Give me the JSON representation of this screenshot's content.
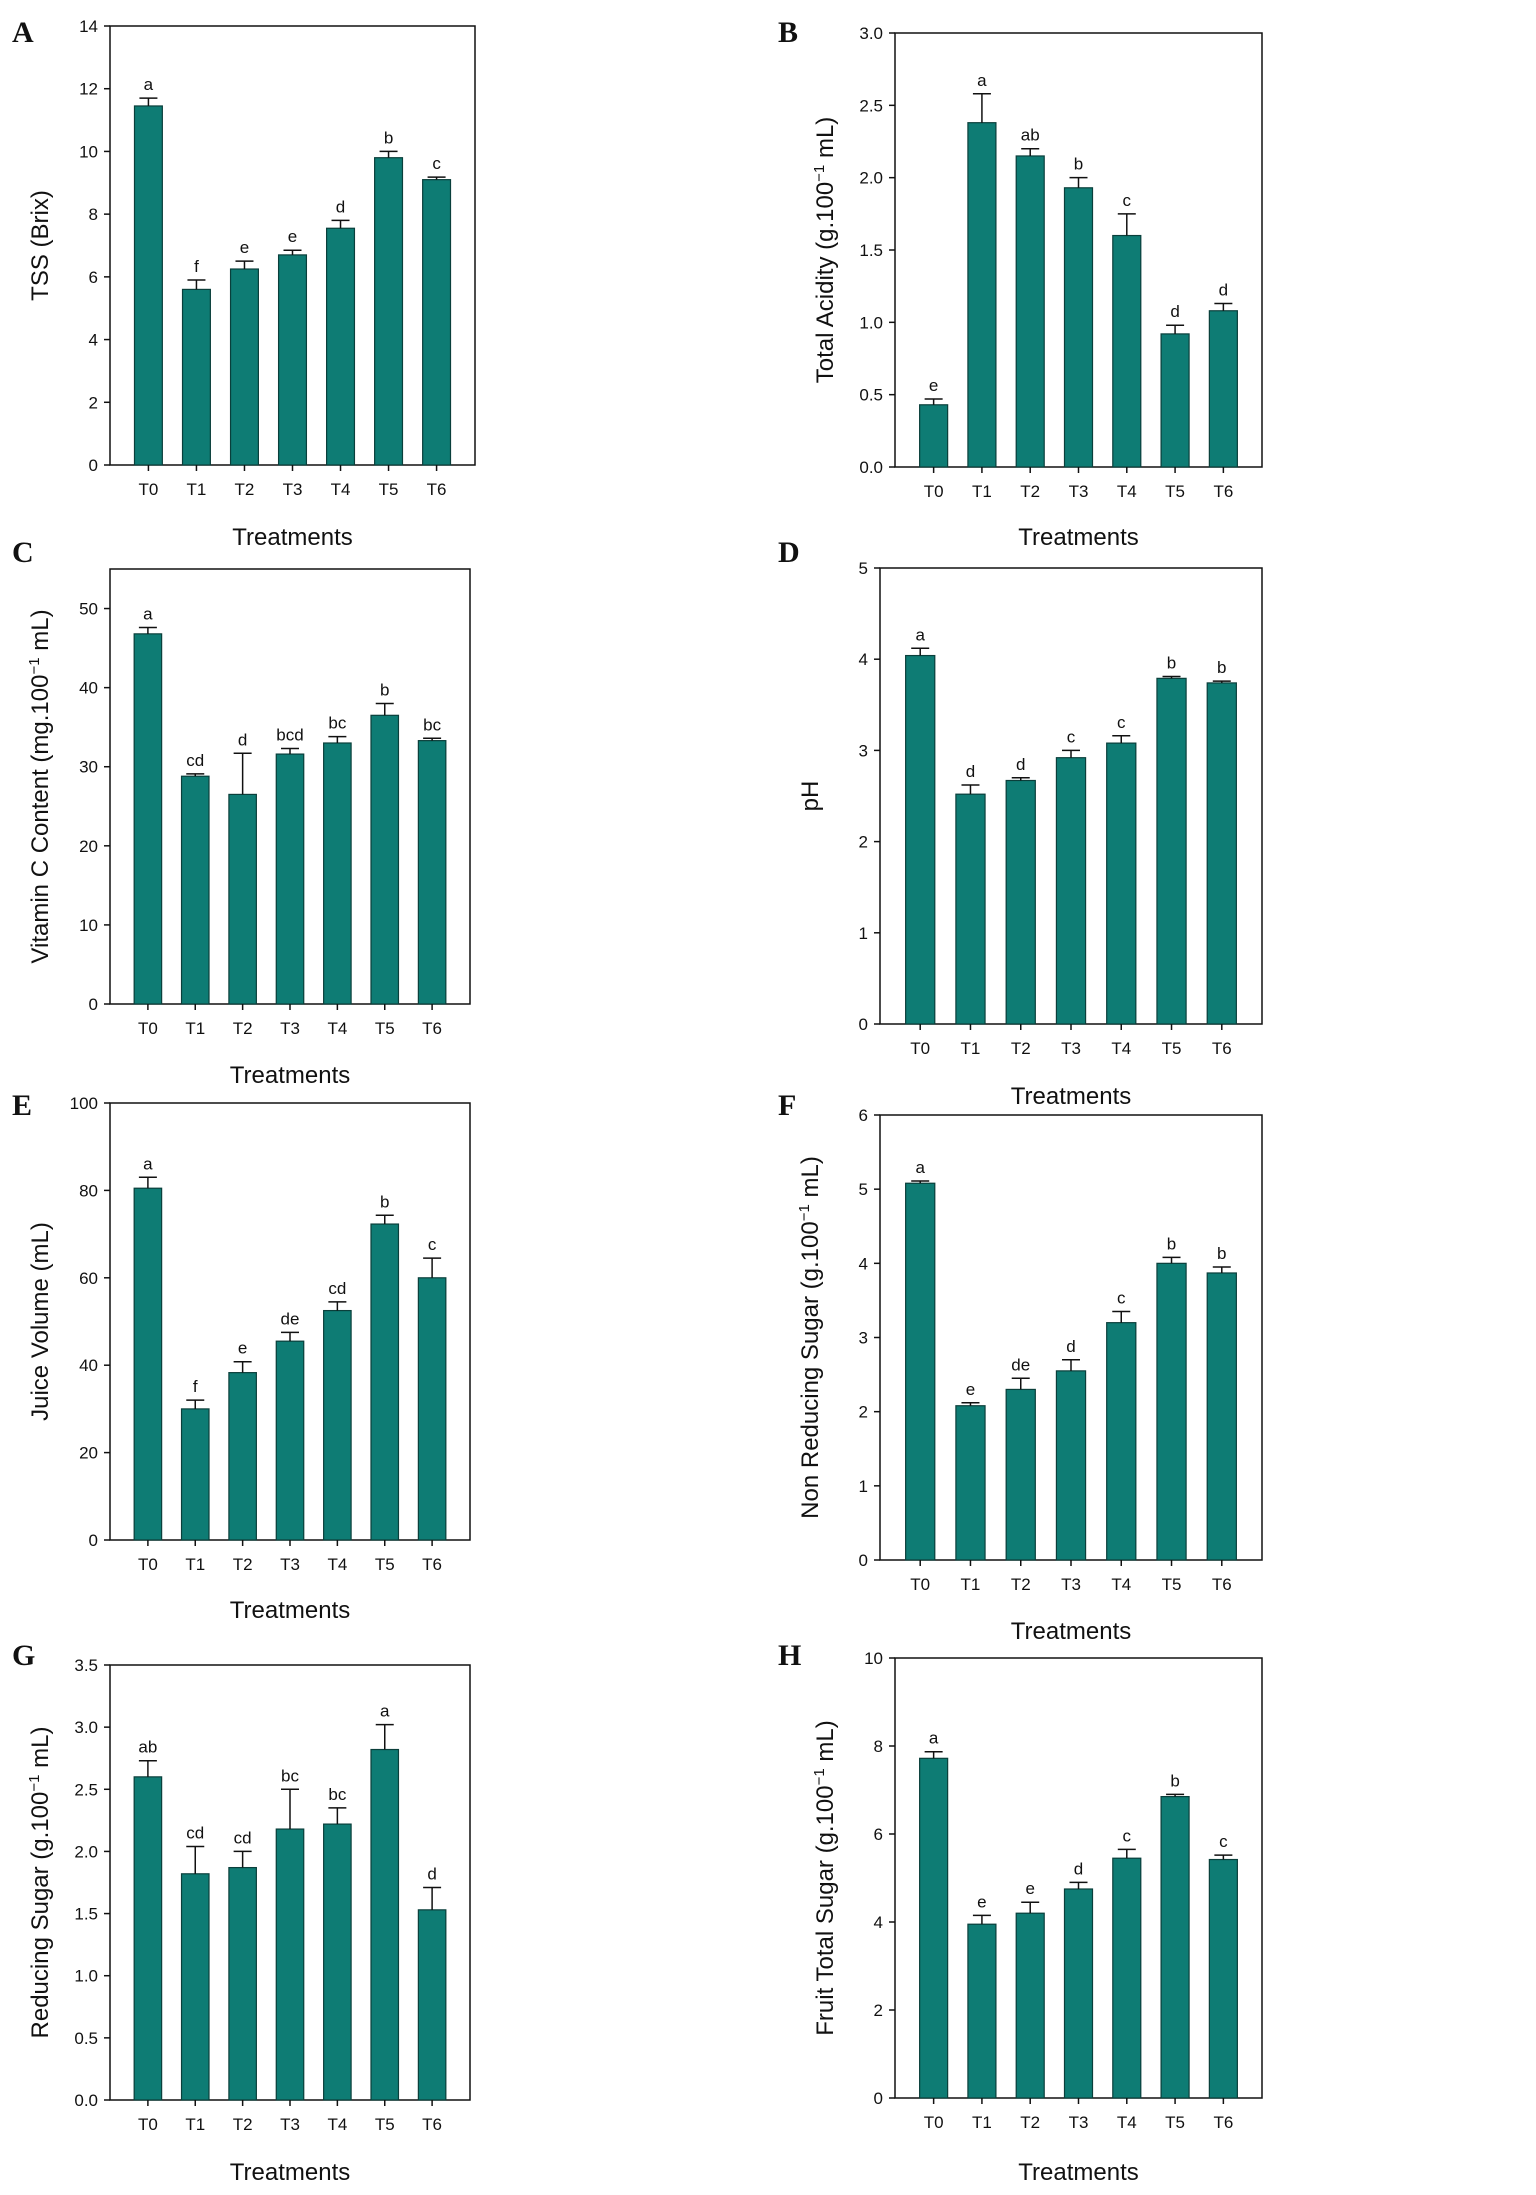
{
  "colors": {
    "bar": "#0e7c74",
    "bar_edge": "#0a3f3b",
    "axis": "#111111"
  },
  "chart_data": [
    {
      "panel": "A",
      "type": "bar",
      "categories": [
        "T0",
        "T1",
        "T2",
        "T3",
        "T4",
        "T5",
        "T6"
      ],
      "values": [
        11.45,
        5.6,
        6.25,
        6.7,
        7.55,
        9.8,
        9.1
      ],
      "errors": [
        0.25,
        0.3,
        0.25,
        0.15,
        0.25,
        0.2,
        0.08
      ],
      "letters": [
        "a",
        "f",
        "e",
        "e",
        "d",
        "b",
        "c"
      ],
      "ylabel": "TSS (Brix)",
      "ylabel_sup": "",
      "ylabel_tail": "",
      "xlabel": "Treatments",
      "ylim": [
        0,
        14
      ],
      "yticks": [
        0,
        2,
        4,
        6,
        8,
        10,
        12,
        14
      ]
    },
    {
      "panel": "B",
      "type": "bar",
      "categories": [
        "T0",
        "T1",
        "T2",
        "T3",
        "T4",
        "T5",
        "T6"
      ],
      "values": [
        0.43,
        2.38,
        2.15,
        1.93,
        1.6,
        0.92,
        1.08
      ],
      "errors": [
        0.04,
        0.2,
        0.05,
        0.07,
        0.15,
        0.06,
        0.05
      ],
      "letters": [
        "e",
        "a",
        "ab",
        "b",
        "c",
        "d",
        "d"
      ],
      "ylabel": "Total Acidity (g.100",
      "ylabel_sup": "−1",
      "ylabel_tail": " mL)",
      "xlabel": "Treatments",
      "ylim": [
        0,
        3.0
      ],
      "yticks": [
        "0.0",
        "0.5",
        "1.0",
        "1.5",
        "2.0",
        "2.5",
        "3.0"
      ]
    },
    {
      "panel": "C",
      "type": "bar",
      "categories": [
        "T0",
        "T1",
        "T2",
        "T3",
        "T4",
        "T5",
        "T6"
      ],
      "values": [
        46.8,
        28.8,
        26.5,
        31.6,
        33.0,
        36.5,
        33.3
      ],
      "errors": [
        0.8,
        0.3,
        5.2,
        0.7,
        0.8,
        1.5,
        0.3
      ],
      "letters": [
        "a",
        "cd",
        "d",
        "bcd",
        "bc",
        "b",
        "bc"
      ],
      "ylabel": "Vitamin C Content (mg.100",
      "ylabel_sup": "−1",
      "ylabel_tail": " mL)",
      "xlabel": "Treatments",
      "ylim": [
        0,
        55
      ],
      "yticks": [
        0,
        10,
        20,
        30,
        40,
        50
      ]
    },
    {
      "panel": "D",
      "type": "bar",
      "categories": [
        "T0",
        "T1",
        "T2",
        "T3",
        "T4",
        "T5",
        "T6"
      ],
      "values": [
        4.04,
        2.52,
        2.67,
        2.92,
        3.08,
        3.79,
        3.74
      ],
      "errors": [
        0.08,
        0.1,
        0.03,
        0.08,
        0.08,
        0.02,
        0.02
      ],
      "letters": [
        "a",
        "d",
        "d",
        "c",
        "c",
        "b",
        "b"
      ],
      "ylabel": "pH",
      "ylabel_sup": "",
      "ylabel_tail": "",
      "xlabel": "Treatments",
      "ylim": [
        0,
        5
      ],
      "yticks": [
        0,
        1,
        2,
        3,
        4,
        5
      ]
    },
    {
      "panel": "E",
      "type": "bar",
      "categories": [
        "T0",
        "T1",
        "T2",
        "T3",
        "T4",
        "T5",
        "T6"
      ],
      "values": [
        80.5,
        30.0,
        38.3,
        45.5,
        52.5,
        72.3,
        60.0
      ],
      "errors": [
        2.5,
        2.0,
        2.5,
        2.0,
        2.0,
        2.0,
        4.5
      ],
      "letters": [
        "a",
        "f",
        "e",
        "de",
        "cd",
        "b",
        "c"
      ],
      "ylabel": "Juice Volume (mL)",
      "ylabel_sup": "",
      "ylabel_tail": "",
      "xlabel": "Treatments",
      "ylim": [
        0,
        100
      ],
      "yticks": [
        0,
        20,
        40,
        60,
        80,
        100
      ]
    },
    {
      "panel": "F",
      "type": "bar",
      "categories": [
        "T0",
        "T1",
        "T2",
        "T3",
        "T4",
        "T5",
        "T6"
      ],
      "values": [
        5.08,
        2.08,
        2.3,
        2.55,
        3.2,
        4.0,
        3.87
      ],
      "errors": [
        0.03,
        0.04,
        0.15,
        0.15,
        0.15,
        0.08,
        0.08
      ],
      "letters": [
        "a",
        "e",
        "de",
        "d",
        "c",
        "b",
        "b"
      ],
      "ylabel": "Non Reducing Sugar (g.100",
      "ylabel_sup": "−1",
      "ylabel_tail": " mL)",
      "xlabel": "Treatments",
      "ylim": [
        0,
        6
      ],
      "yticks": [
        0,
        1,
        2,
        3,
        4,
        5,
        6
      ]
    },
    {
      "panel": "G",
      "type": "bar",
      "categories": [
        "T0",
        "T1",
        "T2",
        "T3",
        "T4",
        "T5",
        "T6"
      ],
      "values": [
        2.6,
        1.82,
        1.87,
        2.18,
        2.22,
        2.82,
        1.53
      ],
      "errors": [
        0.13,
        0.22,
        0.13,
        0.32,
        0.13,
        0.2,
        0.18
      ],
      "letters": [
        "ab",
        "cd",
        "cd",
        "bc",
        "bc",
        "a",
        "d"
      ],
      "ylabel": "Reducing Sugar (g.100",
      "ylabel_sup": "−1",
      "ylabel_tail": " mL)",
      "xlabel": "Treatments",
      "ylim": [
        0,
        3.5
      ],
      "yticks": [
        "0.0",
        "0.5",
        "1.0",
        "1.5",
        "2.0",
        "2.5",
        "3.0",
        "3.5"
      ]
    },
    {
      "panel": "H",
      "type": "bar",
      "categories": [
        "T0",
        "T1",
        "T2",
        "T3",
        "T4",
        "T5",
        "T6"
      ],
      "values": [
        7.72,
        3.95,
        4.2,
        4.75,
        5.45,
        6.85,
        5.42
      ],
      "errors": [
        0.15,
        0.2,
        0.25,
        0.15,
        0.2,
        0.05,
        0.1
      ],
      "letters": [
        "a",
        "e",
        "e",
        "d",
        "c",
        "b",
        "c"
      ],
      "ylabel": "Fruit Total Sugar (g.100",
      "ylabel_sup": "−1",
      "ylabel_tail": " mL)",
      "xlabel": "Treatments",
      "ylim": [
        0,
        10
      ],
      "yticks": [
        0,
        2,
        4,
        6,
        8,
        10
      ]
    }
  ]
}
